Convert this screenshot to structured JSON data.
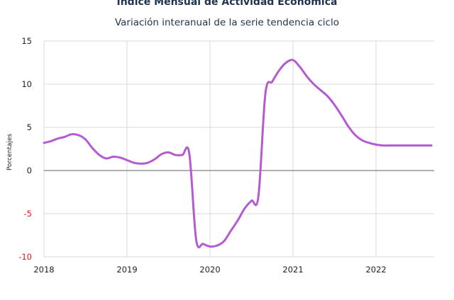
{
  "title": "Indice Mensual de  Actividad Económica",
  "subtitle": "Variación interanual de la serie tendencia ciclo",
  "colors": {
    "line": "#b55bd1",
    "grid": "#d9d9d9",
    "zero_line": "#7f7f7f",
    "negative_tick": "#e0161b"
  },
  "chart_data": {
    "type": "line",
    "title": "Indice Mensual de  Actividad Económica",
    "subtitle": "Variación interanual de la serie tendencia ciclo",
    "xlabel": "",
    "ylabel": "Porcentajes",
    "xlim": [
      2018.0,
      2022.7
    ],
    "ylim": [
      -10,
      15
    ],
    "x_ticks": [
      "2018",
      "2019",
      "2020",
      "2021",
      "2022"
    ],
    "y_ticks": [
      "15",
      "10",
      "5",
      "0",
      "-5",
      "-10"
    ],
    "grid": true,
    "series": [
      {
        "x": [
          2018.0,
          2018.083,
          2018.167,
          2018.25,
          2018.333,
          2018.417,
          2018.5,
          2018.583,
          2018.667,
          2018.75,
          2018.833,
          2018.917,
          2019.0,
          2019.083,
          2019.167,
          2019.25,
          2019.333,
          2019.417,
          2019.5,
          2019.583,
          2019.667,
          2019.75,
          2019.833,
          2019.917,
          2020.0,
          2020.083,
          2020.167,
          2020.25,
          2020.333,
          2020.417,
          2020.5,
          2020.583,
          2020.667,
          2020.75,
          2020.833,
          2020.917,
          2021.0,
          2021.083,
          2021.167,
          2021.25,
          2021.333,
          2021.417,
          2021.5,
          2021.583,
          2021.667,
          2021.75,
          2021.833,
          2021.917,
          2022.0,
          2022.083,
          2022.167,
          2022.25,
          2022.333,
          2022.417,
          2022.5,
          2022.583,
          2022.667
        ],
        "values": [
          3.2,
          3.4,
          3.7,
          3.9,
          4.2,
          4.1,
          3.6,
          2.6,
          1.8,
          1.4,
          1.6,
          1.5,
          1.2,
          0.9,
          0.8,
          0.9,
          1.3,
          1.9,
          2.1,
          1.8,
          1.8,
          2.0,
          -8.0,
          -8.5,
          -8.8,
          -8.7,
          -8.2,
          -7.0,
          -5.8,
          -4.4,
          -3.5,
          -3.0,
          8.9,
          10.3,
          11.6,
          12.5,
          12.8,
          12.0,
          10.9,
          10.0,
          9.3,
          8.6,
          7.6,
          6.4,
          5.1,
          4.1,
          3.5,
          3.2,
          3.0,
          2.9,
          2.9,
          2.9,
          2.9,
          2.9,
          2.9,
          2.9,
          2.9
        ]
      }
    ]
  }
}
